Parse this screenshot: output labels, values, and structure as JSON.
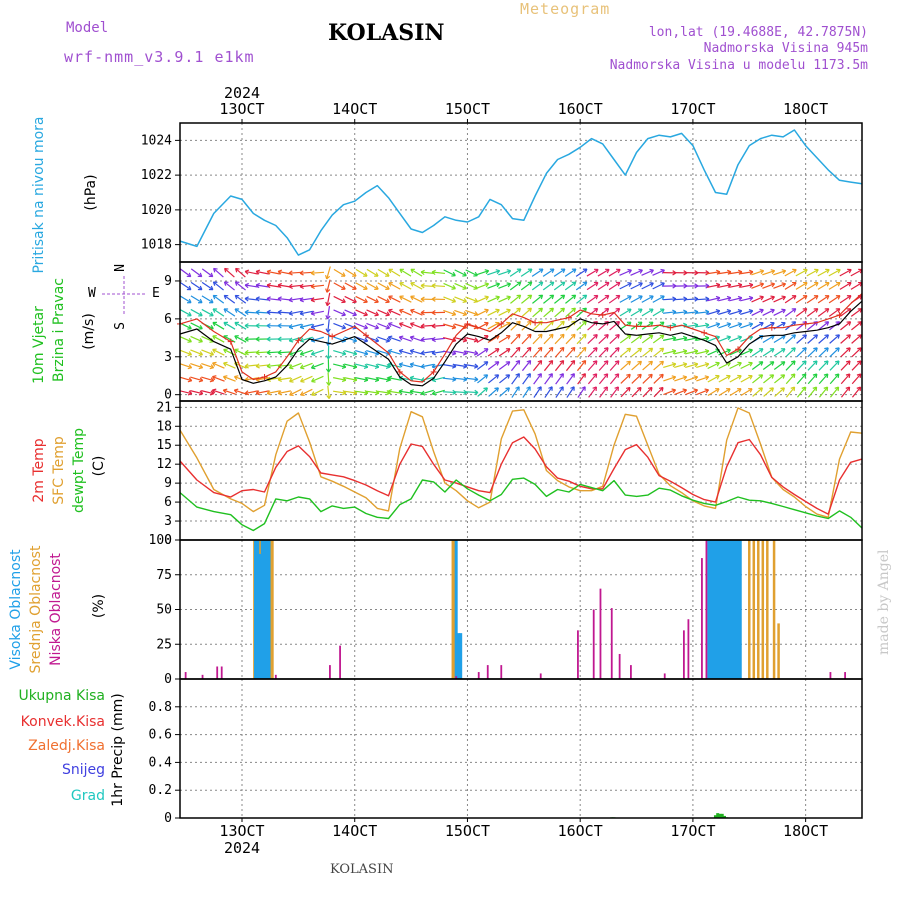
{
  "header": {
    "model_label": "Model",
    "model_name": "wrf-nmm_v3.9.1 e1km",
    "title": "KOLASIN",
    "heading": "Meteogram",
    "loc_line1": "lon,lat (19.4688E, 42.7875N)",
    "loc_line2": "Nadmorska Visina 945m",
    "loc_line3": "Nadmorska Visina u modelu 1173.5m"
  },
  "footer": {
    "station": "KOLASIN"
  },
  "watermark": "made by Angel",
  "time_axis": {
    "year": "2024",
    "tick_labels": [
      "13OCT",
      "14OCT",
      "15OCT",
      "16OCT",
      "17OCT",
      "18OCT"
    ],
    "range_days": [
      12.45,
      18.5
    ]
  },
  "colors": {
    "pressure": "#29a8e0",
    "wind_speed": "#000000",
    "wind_gust": "#e03020",
    "t2m": "#e83030",
    "tsfc": "#e0a030",
    "dewpt": "#20c020",
    "cloud_high": "#20a0e8",
    "cloud_mid": "#e0a030",
    "cloud_low": "#c01890",
    "precip_total": "#20b020",
    "precip_conv": "#e83030",
    "precip_frz": "#f07030",
    "precip_snow": "#4040e0",
    "precip_hail": "#20c8c0"
  },
  "chart_data": [
    {
      "type": "line",
      "panel": "pressure",
      "ylabels": [
        "Pritisak na nivou mora",
        "(hPa)"
      ],
      "yticks": [
        "1018",
        "1020",
        "1022",
        "1024"
      ],
      "ylim": [
        1017,
        1025
      ],
      "series": [
        {
          "name": "Pritisak na nivou mora",
          "x": [
            12.45,
            12.6,
            12.75,
            12.9,
            13.0,
            13.1,
            13.2,
            13.3,
            13.4,
            13.5,
            13.6,
            13.7,
            13.8,
            13.9,
            14.0,
            14.1,
            14.2,
            14.3,
            14.4,
            14.5,
            14.6,
            14.7,
            14.8,
            14.9,
            15.0,
            15.1,
            15.2,
            15.3,
            15.4,
            15.5,
            15.6,
            15.7,
            15.8,
            15.9,
            16.0,
            16.1,
            16.2,
            16.3,
            16.4,
            16.5,
            16.6,
            16.7,
            16.8,
            16.9,
            17.0,
            17.1,
            17.2,
            17.3,
            17.4,
            17.5,
            17.6,
            17.7,
            17.8,
            17.9,
            18.0,
            18.1,
            18.2,
            18.3,
            18.4,
            18.5
          ],
          "y": [
            1018.2,
            1017.9,
            1019.8,
            1020.8,
            1020.6,
            1019.8,
            1019.4,
            1019.1,
            1018.4,
            1017.4,
            1017.7,
            1018.8,
            1019.7,
            1020.3,
            1020.5,
            1021.0,
            1021.4,
            1020.7,
            1019.8,
            1018.9,
            1018.7,
            1019.1,
            1019.6,
            1019.4,
            1019.3,
            1019.6,
            1020.6,
            1020.3,
            1019.5,
            1019.4,
            1020.8,
            1022.1,
            1022.9,
            1023.2,
            1023.6,
            1024.1,
            1023.8,
            1022.9,
            1022.0,
            1023.3,
            1024.1,
            1024.3,
            1024.2,
            1024.4,
            1023.7,
            1022.3,
            1021.0,
            1020.9,
            1022.6,
            1023.7,
            1024.1,
            1024.3,
            1024.2,
            1024.6,
            1023.7,
            1023.0,
            1022.3,
            1021.7,
            1021.6,
            1021.5
          ]
        }
      ]
    },
    {
      "type": "line",
      "panel": "wind",
      "ylabels": [
        "10m Vjetar",
        "Brzina i Pravac",
        "(m/s)"
      ],
      "legend_directions": [
        "N",
        "W",
        "E",
        "S"
      ],
      "yticks": [
        "0",
        "3",
        "6",
        "9"
      ],
      "ylim": [
        -0.5,
        10.5
      ],
      "series": [
        {
          "name": "brzina",
          "x": [
            12.45,
            12.6,
            12.75,
            12.9,
            13.0,
            13.1,
            13.2,
            13.3,
            13.4,
            13.5,
            13.6,
            13.7,
            13.8,
            13.9,
            14.0,
            14.1,
            14.2,
            14.3,
            14.4,
            14.5,
            14.6,
            14.7,
            14.8,
            14.9,
            15.0,
            15.1,
            15.2,
            15.3,
            15.4,
            15.5,
            15.6,
            15.7,
            15.8,
            15.9,
            16.0,
            16.1,
            16.2,
            16.3,
            16.4,
            16.5,
            16.6,
            16.7,
            16.8,
            16.9,
            17.0,
            17.1,
            17.2,
            17.3,
            17.4,
            17.5,
            17.6,
            17.7,
            17.8,
            17.9,
            18.0,
            18.1,
            18.2,
            18.3,
            18.4,
            18.5
          ],
          "y": [
            4.8,
            5.2,
            4.2,
            3.6,
            1.2,
            0.9,
            1.1,
            1.4,
            2.3,
            3.6,
            4.4,
            4.2,
            4.0,
            4.3,
            4.6,
            4.0,
            3.4,
            2.8,
            1.4,
            0.8,
            0.7,
            1.3,
            2.6,
            4.0,
            4.8,
            4.6,
            4.3,
            4.9,
            5.7,
            5.4,
            5.0,
            5.0,
            5.2,
            5.4,
            6.0,
            5.7,
            5.6,
            5.8,
            4.8,
            4.7,
            4.8,
            4.9,
            4.7,
            4.9,
            4.6,
            4.3,
            3.9,
            2.5,
            3.0,
            4.0,
            4.6,
            4.7,
            4.7,
            4.9,
            5.0,
            5.1,
            5.3,
            5.6,
            6.6,
            7.4
          ]
        },
        {
          "name": "udari",
          "x": [
            12.45,
            12.6,
            12.75,
            12.9,
            13.0,
            13.1,
            13.2,
            13.3,
            13.4,
            13.5,
            13.6,
            13.7,
            13.8,
            13.9,
            14.0,
            14.1,
            14.2,
            14.3,
            14.4,
            14.5,
            14.6,
            14.7,
            14.8,
            14.9,
            15.0,
            15.1,
            15.2,
            15.3,
            15.4,
            15.5,
            15.6,
            15.7,
            15.8,
            15.9,
            16.0,
            16.1,
            16.2,
            16.3,
            16.4,
            16.5,
            16.6,
            16.7,
            16.8,
            16.9,
            17.0,
            17.1,
            17.2,
            17.3,
            17.4,
            17.5,
            17.6,
            17.7,
            17.8,
            17.9,
            18.0,
            18.1,
            18.2,
            18.3,
            18.4,
            18.5
          ],
          "y": [
            5.6,
            6.0,
            5.0,
            4.2,
            1.8,
            1.2,
            1.4,
            1.8,
            3.0,
            4.3,
            5.2,
            5.0,
            4.6,
            5.0,
            5.4,
            4.7,
            4.0,
            3.3,
            1.8,
            1.1,
            1.0,
            1.8,
            3.2,
            4.7,
            5.6,
            5.3,
            5.0,
            5.6,
            6.4,
            6.1,
            5.7,
            5.7,
            5.9,
            6.1,
            6.7,
            6.4,
            6.3,
            6.5,
            5.5,
            5.4,
            5.4,
            5.5,
            5.3,
            5.5,
            5.2,
            4.9,
            4.6,
            3.1,
            3.6,
            4.6,
            5.2,
            5.3,
            5.3,
            5.5,
            5.6,
            5.7,
            6.0,
            6.3,
            7.2,
            8.0
          ]
        }
      ]
    },
    {
      "type": "line",
      "panel": "temperature",
      "ylabels": [
        "2m Temp",
        "SFC Temp",
        "dewpt Temp",
        "(C)"
      ],
      "yticks": [
        "0",
        "3",
        "6",
        "9",
        "12",
        "15",
        "18",
        "21"
      ],
      "ylim": [
        0,
        22
      ],
      "series": [
        {
          "name": "2m Temp",
          "x": [
            12.45,
            12.6,
            12.75,
            12.9,
            13.0,
            13.1,
            13.2,
            13.3,
            13.4,
            13.5,
            13.6,
            13.7,
            13.8,
            13.9,
            14.0,
            14.1,
            14.2,
            14.3,
            14.4,
            14.5,
            14.6,
            14.7,
            14.8,
            14.9,
            15.0,
            15.1,
            15.2,
            15.3,
            15.4,
            15.5,
            15.6,
            15.7,
            15.8,
            15.9,
            16.0,
            16.1,
            16.2,
            16.3,
            16.4,
            16.5,
            16.6,
            16.7,
            16.8,
            16.9,
            17.0,
            17.1,
            17.2,
            17.3,
            17.4,
            17.5,
            17.6,
            17.7,
            17.8,
            17.9,
            18.0,
            18.1,
            18.2,
            18.3,
            18.4,
            18.5
          ],
          "y": [
            12.5,
            9.5,
            7.5,
            6.8,
            7.8,
            8.0,
            7.6,
            11.5,
            14.0,
            14.9,
            13.2,
            10.6,
            10.3,
            10.0,
            9.4,
            8.7,
            7.8,
            7.0,
            12.0,
            15.2,
            14.8,
            12.0,
            9.5,
            9.0,
            8.4,
            7.8,
            7.5,
            12.0,
            15.4,
            16.3,
            14.4,
            11.6,
            9.8,
            9.3,
            8.5,
            8.1,
            8.1,
            11.3,
            14.3,
            15.1,
            13.1,
            10.2,
            9.3,
            8.3,
            7.2,
            6.4,
            6.0,
            11.6,
            15.4,
            15.9,
            13.5,
            9.9,
            8.4,
            7.2,
            6.1,
            5.0,
            4.1,
            9.5,
            12.3,
            12.8
          ]
        },
        {
          "name": "SFC Temp",
          "x": [
            12.45,
            12.6,
            12.75,
            12.9,
            13.0,
            13.1,
            13.2,
            13.3,
            13.4,
            13.5,
            13.6,
            13.7,
            13.8,
            13.9,
            14.0,
            14.1,
            14.2,
            14.3,
            14.4,
            14.5,
            14.6,
            14.7,
            14.8,
            14.9,
            15.0,
            15.1,
            15.2,
            15.3,
            15.4,
            15.5,
            15.6,
            15.7,
            15.8,
            15.9,
            16.0,
            16.1,
            16.2,
            16.3,
            16.4,
            16.5,
            16.6,
            16.7,
            16.8,
            16.9,
            17.0,
            17.1,
            17.2,
            17.3,
            17.4,
            17.5,
            17.6,
            17.7,
            17.8,
            17.9,
            18.0,
            18.1,
            18.2,
            18.3,
            18.4,
            18.5
          ],
          "y": [
            17.4,
            13.0,
            8.0,
            6.5,
            5.8,
            4.5,
            5.5,
            13.5,
            18.8,
            20.1,
            15.5,
            10.0,
            9.3,
            8.5,
            7.6,
            6.7,
            5.0,
            4.6,
            14.5,
            20.3,
            19.5,
            14.0,
            9.0,
            7.8,
            6.2,
            5.1,
            6.0,
            16.0,
            20.4,
            20.6,
            16.8,
            11.0,
            9.4,
            8.4,
            7.8,
            7.8,
            8.5,
            15.0,
            19.9,
            19.6,
            15.0,
            10.4,
            8.6,
            7.5,
            6.2,
            5.4,
            5.0,
            15.8,
            20.9,
            20.1,
            15.2,
            9.9,
            8.0,
            6.8,
            5.3,
            4.1,
            3.6,
            12.8,
            17.1,
            16.9
          ]
        },
        {
          "name": "dewpt Temp",
          "x": [
            12.45,
            12.6,
            12.75,
            12.9,
            13.0,
            13.1,
            13.2,
            13.3,
            13.4,
            13.5,
            13.6,
            13.7,
            13.8,
            13.9,
            14.0,
            14.1,
            14.2,
            14.3,
            14.4,
            14.5,
            14.6,
            14.7,
            14.8,
            14.9,
            15.0,
            15.1,
            15.2,
            15.3,
            15.4,
            15.5,
            15.6,
            15.7,
            15.8,
            15.9,
            16.0,
            16.1,
            16.2,
            16.3,
            16.4,
            16.5,
            16.6,
            16.7,
            16.8,
            16.9,
            17.0,
            17.1,
            17.2,
            17.3,
            17.4,
            17.5,
            17.6,
            17.7,
            17.8,
            17.9,
            18.0,
            18.1,
            18.2,
            18.3,
            18.4,
            18.5
          ],
          "y": [
            7.5,
            5.2,
            4.5,
            4.0,
            2.4,
            1.5,
            2.6,
            6.5,
            6.2,
            6.8,
            6.5,
            4.5,
            5.4,
            5.0,
            5.2,
            4.2,
            3.6,
            3.4,
            5.6,
            6.5,
            9.5,
            9.2,
            7.6,
            9.5,
            8.1,
            7.1,
            6.2,
            7.2,
            9.6,
            9.8,
            8.8,
            6.9,
            8.0,
            7.6,
            8.8,
            8.3,
            7.8,
            9.4,
            7.1,
            6.9,
            7.1,
            8.2,
            7.9,
            7.0,
            6.3,
            5.8,
            5.5,
            6.1,
            6.8,
            6.3,
            6.2,
            5.8,
            5.3,
            4.8,
            4.3,
            3.8,
            3.4,
            4.6,
            3.6,
            1.9
          ]
        }
      ]
    },
    {
      "type": "bar",
      "panel": "clouds",
      "ylabels": [
        "Visoka Oblacnost",
        "Srednja Oblacnost",
        "Niska Oblacnost",
        "(%)"
      ],
      "yticks": [
        "0",
        "25",
        "50",
        "75",
        "100"
      ],
      "ylim": [
        0,
        100
      ],
      "series": [
        {
          "name": "Visoka Oblacnost",
          "x": [
            13.12,
            13.14,
            13.16,
            13.18,
            13.2,
            13.22,
            13.24,
            14.9,
            14.92,
            14.94,
            17.14,
            17.16,
            17.18,
            17.2,
            17.22,
            17.24,
            17.26,
            17.28,
            17.3,
            17.32,
            17.34,
            17.36,
            17.38,
            17.4,
            17.42
          ],
          "y": [
            100,
            100,
            90,
            100,
            100,
            100,
            100,
            100,
            33,
            33,
            100,
            100,
            100,
            100,
            100,
            100,
            100,
            100,
            100,
            100,
            100,
            100,
            100,
            100,
            100
          ]
        },
        {
          "name": "Srednja Oblacnost",
          "x": [
            13.11,
            13.13,
            13.15,
            13.17,
            13.19,
            13.21,
            13.23,
            13.25,
            13.27,
            14.87,
            14.89,
            17.5,
            17.54,
            17.58,
            17.62,
            17.66,
            17.72,
            17.76
          ],
          "y": [
            100,
            100,
            100,
            100,
            100,
            100,
            100,
            100,
            100,
            100,
            100,
            100,
            100,
            100,
            100,
            100,
            100,
            40
          ]
        },
        {
          "name": "Niska Oblacnost",
          "x": [
            12.5,
            12.65,
            12.78,
            12.82,
            13.3,
            13.78,
            13.87,
            14.9,
            15.1,
            15.18,
            15.3,
            15.65,
            15.98,
            16.12,
            16.18,
            16.28,
            16.35,
            16.45,
            16.75,
            16.92,
            16.96,
            17.08,
            17.12,
            18.22,
            18.35
          ],
          "y": [
            5,
            3,
            9,
            9,
            3,
            10,
            24,
            2,
            5,
            10,
            10,
            4,
            35,
            50,
            65,
            51,
            18,
            10,
            4,
            35,
            43,
            87,
            100,
            5,
            5
          ]
        }
      ]
    },
    {
      "type": "bar",
      "panel": "precipitation",
      "ylabels": [
        "Ukupna Kisa",
        "Konvek.Kisa",
        "Zaledj.Kisa",
        "Snijeg",
        "Grad",
        "1hr Precip (mm)"
      ],
      "yticks": [
        "0",
        "0.2",
        "0.4",
        "0.6",
        "0.8"
      ],
      "ylim": [
        0,
        1.0
      ],
      "series": [
        {
          "name": "Ukupna Kisa",
          "x": [
            16.28,
            16.3,
            17.2,
            17.22,
            17.24,
            17.26,
            17.28,
            17.3
          ],
          "y": [
            0.005,
            0.005,
            0.02,
            0.035,
            0.03,
            0.03,
            0.015,
            0.005
          ]
        }
      ]
    }
  ]
}
